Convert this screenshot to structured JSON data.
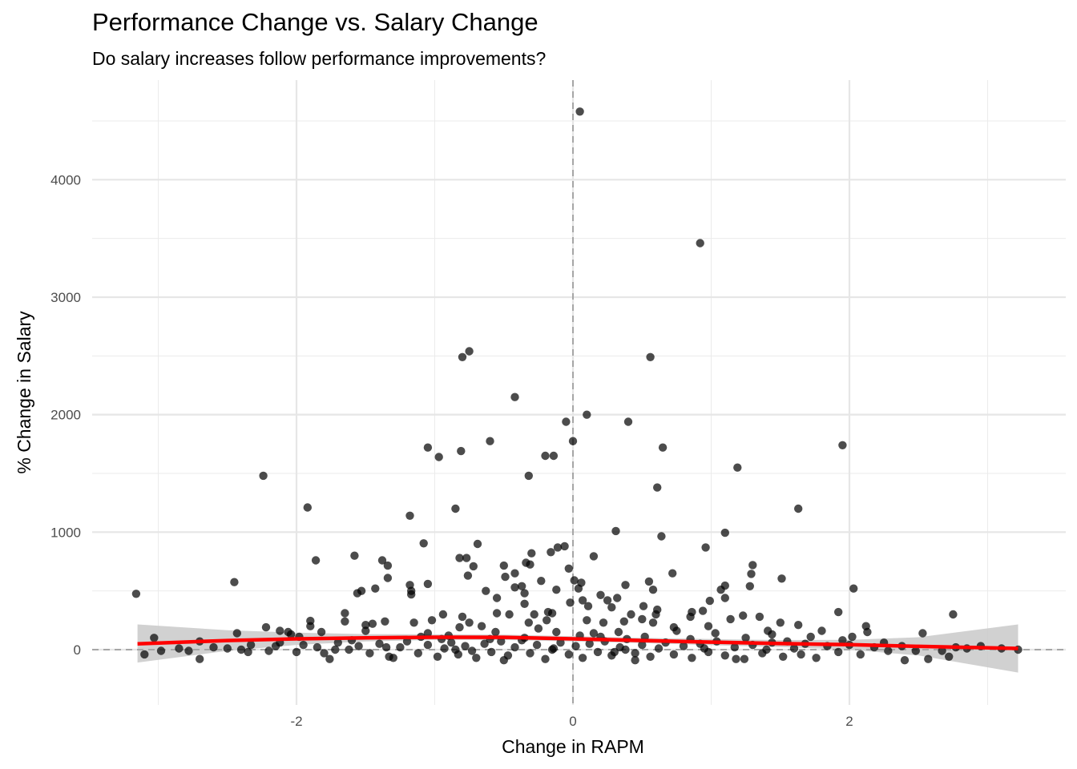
{
  "chart_data": {
    "type": "scatter",
    "title": "Performance Change vs. Salary Change",
    "subtitle": "Do salary increases follow performance improvements?",
    "xlabel": "Change in RAPM",
    "ylabel": "% Change in Salary",
    "xlim": [
      -3.2,
      3.2
    ],
    "ylim": [
      -400,
      4650
    ],
    "x_ticks": [
      -2,
      0,
      2
    ],
    "y_ticks": [
      0,
      1000,
      2000,
      3000,
      4000
    ],
    "grid": true,
    "reference_lines": {
      "vertical_x": 0,
      "horizontal_y": 0,
      "style": "dashed"
    },
    "trend": {
      "method": "smooth",
      "color": "#ff0000",
      "band_color": "#cccccc",
      "points": [
        {
          "x": -3.15,
          "y": 50,
          "lo": -110,
          "hi": 215
        },
        {
          "x": -2.5,
          "y": 78,
          "lo": -10,
          "hi": 165
        },
        {
          "x": -2.0,
          "y": 92,
          "lo": 40,
          "hi": 145
        },
        {
          "x": -1.5,
          "y": 100,
          "lo": 70,
          "hi": 132
        },
        {
          "x": -1.0,
          "y": 106,
          "lo": 82,
          "hi": 130
        },
        {
          "x": -0.5,
          "y": 105,
          "lo": 82,
          "hi": 128
        },
        {
          "x": 0.0,
          "y": 92,
          "lo": 70,
          "hi": 114
        },
        {
          "x": 0.5,
          "y": 78,
          "lo": 56,
          "hi": 100
        },
        {
          "x": 1.0,
          "y": 64,
          "lo": 38,
          "hi": 90
        },
        {
          "x": 1.5,
          "y": 52,
          "lo": 22,
          "hi": 82
        },
        {
          "x": 2.0,
          "y": 42,
          "lo": 0,
          "hi": 84
        },
        {
          "x": 2.5,
          "y": 28,
          "lo": -50,
          "hi": 106
        },
        {
          "x": 3.22,
          "y": 10,
          "lo": -195,
          "hi": 215
        }
      ]
    },
    "points": [
      [
        0.05,
        4580
      ],
      [
        0.92,
        3460
      ],
      [
        -0.8,
        2490
      ],
      [
        -0.75,
        2540
      ],
      [
        0.56,
        2490
      ],
      [
        -0.42,
        2150
      ],
      [
        -0.05,
        1940
      ],
      [
        0.1,
        2000
      ],
      [
        0.4,
        1940
      ],
      [
        0.0,
        1775
      ],
      [
        -0.6,
        1775
      ],
      [
        -1.05,
        1720
      ],
      [
        -0.97,
        1640
      ],
      [
        -0.81,
        1690
      ],
      [
        -0.2,
        1650
      ],
      [
        -0.14,
        1650
      ],
      [
        0.65,
        1720
      ],
      [
        1.95,
        1740
      ],
      [
        1.19,
        1550
      ],
      [
        -2.24,
        1480
      ],
      [
        -0.32,
        1480
      ],
      [
        0.61,
        1380
      ],
      [
        -1.92,
        1210
      ],
      [
        -0.85,
        1200
      ],
      [
        1.63,
        1200
      ],
      [
        -1.18,
        1140
      ],
      [
        0.31,
        1010
      ],
      [
        0.64,
        965
      ],
      [
        1.1,
        995
      ],
      [
        -1.08,
        905
      ],
      [
        -0.69,
        900
      ],
      [
        0.96,
        870
      ],
      [
        -0.06,
        880
      ],
      [
        -0.11,
        870
      ],
      [
        -0.16,
        830
      ],
      [
        -0.3,
        820
      ],
      [
        -1.58,
        800
      ],
      [
        -0.82,
        780
      ],
      [
        -0.77,
        780
      ],
      [
        0.15,
        795
      ],
      [
        -1.86,
        760
      ],
      [
        -1.38,
        760
      ],
      [
        -1.34,
        715
      ],
      [
        -0.34,
        740
      ],
      [
        -0.31,
        725
      ],
      [
        -0.5,
        715
      ],
      [
        -0.72,
        710
      ],
      [
        1.3,
        720
      ],
      [
        0.72,
        650
      ],
      [
        1.29,
        645
      ],
      [
        1.51,
        605
      ],
      [
        -1.34,
        610
      ],
      [
        -0.49,
        620
      ],
      [
        -0.76,
        630
      ],
      [
        -0.42,
        650
      ],
      [
        -0.23,
        585
      ],
      [
        0.01,
        590
      ],
      [
        0.06,
        570
      ],
      [
        0.55,
        580
      ],
      [
        -2.45,
        575
      ],
      [
        -1.05,
        560
      ],
      [
        -0.03,
        690
      ],
      [
        -1.18,
        550
      ],
      [
        0.38,
        550
      ],
      [
        1.1,
        545
      ],
      [
        0.58,
        510
      ],
      [
        -0.42,
        530
      ],
      [
        -0.12,
        510
      ],
      [
        0.04,
        520
      ],
      [
        0.2,
        465
      ],
      [
        -0.37,
        540
      ],
      [
        -1.43,
        520
      ],
      [
        -1.53,
        500
      ],
      [
        -1.56,
        480
      ],
      [
        -1.17,
        470
      ],
      [
        -1.17,
        500
      ],
      [
        -0.63,
        500
      ],
      [
        -0.55,
        440
      ],
      [
        -0.35,
        480
      ],
      [
        2.03,
        520
      ],
      [
        1.07,
        510
      ],
      [
        0.99,
        415
      ],
      [
        1.1,
        440
      ],
      [
        1.28,
        540
      ],
      [
        0.32,
        440
      ],
      [
        0.25,
        420
      ],
      [
        0.07,
        420
      ],
      [
        -0.02,
        400
      ],
      [
        -0.35,
        390
      ],
      [
        -0.18,
        320
      ],
      [
        0.11,
        370
      ],
      [
        0.28,
        360
      ],
      [
        0.51,
        370
      ],
      [
        0.61,
        340
      ],
      [
        0.6,
        300
      ],
      [
        -3.16,
        475
      ],
      [
        -0.94,
        300
      ],
      [
        -0.8,
        280
      ],
      [
        -0.55,
        310
      ],
      [
        -0.46,
        300
      ],
      [
        -0.28,
        300
      ],
      [
        -0.15,
        310
      ],
      [
        0.42,
        300
      ],
      [
        0.86,
        320
      ],
      [
        0.94,
        330
      ],
      [
        1.23,
        290
      ],
      [
        1.35,
        280
      ],
      [
        1.92,
        320
      ],
      [
        2.75,
        300
      ],
      [
        -1.65,
        310
      ],
      [
        -2.22,
        190
      ],
      [
        -2.12,
        160
      ],
      [
        -2.06,
        150
      ],
      [
        -1.9,
        200
      ],
      [
        -1.9,
        245
      ],
      [
        -1.82,
        150
      ],
      [
        -1.65,
        240
      ],
      [
        -1.5,
        210
      ],
      [
        -1.45,
        220
      ],
      [
        -1.36,
        240
      ],
      [
        -1.15,
        230
      ],
      [
        -1.02,
        250
      ],
      [
        -0.82,
        190
      ],
      [
        -0.75,
        230
      ],
      [
        -0.66,
        200
      ],
      [
        -0.32,
        230
      ],
      [
        -0.25,
        180
      ],
      [
        -0.19,
        250
      ],
      [
        0.1,
        250
      ],
      [
        0.22,
        230
      ],
      [
        0.37,
        240
      ],
      [
        0.5,
        260
      ],
      [
        0.58,
        230
      ],
      [
        0.73,
        190
      ],
      [
        0.85,
        280
      ],
      [
        0.98,
        200
      ],
      [
        1.14,
        260
      ],
      [
        1.41,
        160
      ],
      [
        1.5,
        230
      ],
      [
        1.63,
        210
      ],
      [
        1.8,
        160
      ],
      [
        2.12,
        200
      ],
      [
        2.53,
        140
      ],
      [
        -2.43,
        140
      ],
      [
        -2.04,
        130
      ],
      [
        -1.5,
        160
      ],
      [
        -1.05,
        140
      ],
      [
        -0.9,
        120
      ],
      [
        -0.56,
        150
      ],
      [
        -0.12,
        150
      ],
      [
        0.15,
        140
      ],
      [
        0.33,
        150
      ],
      [
        0.75,
        160
      ],
      [
        1.03,
        140
      ],
      [
        1.44,
        130
      ],
      [
        1.72,
        110
      ],
      [
        2.02,
        110
      ],
      [
        2.13,
        150
      ],
      [
        -3.1,
        -40
      ],
      [
        -3.03,
        100
      ],
      [
        -2.98,
        -10
      ],
      [
        -2.85,
        10
      ],
      [
        -2.78,
        -10
      ],
      [
        -2.7,
        -80
      ],
      [
        -2.6,
        20
      ],
      [
        -2.5,
        10
      ],
      [
        -2.4,
        0
      ],
      [
        -2.33,
        40
      ],
      [
        -2.2,
        -10
      ],
      [
        -2.15,
        30
      ],
      [
        -2.0,
        -20
      ],
      [
        -1.95,
        40
      ],
      [
        -1.85,
        20
      ],
      [
        -1.76,
        -80
      ],
      [
        -1.7,
        60
      ],
      [
        -1.62,
        0
      ],
      [
        -1.55,
        30
      ],
      [
        -1.47,
        -30
      ],
      [
        -1.4,
        50
      ],
      [
        -1.33,
        -60
      ],
      [
        -1.25,
        20
      ],
      [
        -1.2,
        70
      ],
      [
        -1.12,
        -30
      ],
      [
        -1.05,
        40
      ],
      [
        -0.98,
        -60
      ],
      [
        -0.93,
        10
      ],
      [
        -0.88,
        60
      ],
      [
        -0.83,
        -40
      ],
      [
        -0.78,
        30
      ],
      [
        -0.7,
        -70
      ],
      [
        -0.64,
        50
      ],
      [
        -0.59,
        -20
      ],
      [
        -0.52,
        70
      ],
      [
        -0.47,
        -50
      ],
      [
        -0.42,
        20
      ],
      [
        -0.37,
        80
      ],
      [
        -0.31,
        -30
      ],
      [
        -0.26,
        40
      ],
      [
        -0.2,
        -80
      ],
      [
        -0.14,
        10
      ],
      [
        -0.09,
        60
      ],
      [
        -0.03,
        -40
      ],
      [
        0.02,
        30
      ],
      [
        0.07,
        -70
      ],
      [
        0.12,
        50
      ],
      [
        0.18,
        -20
      ],
      [
        0.23,
        70
      ],
      [
        0.28,
        -50
      ],
      [
        0.34,
        20
      ],
      [
        0.39,
        90
      ],
      [
        0.45,
        -30
      ],
      [
        0.5,
        40
      ],
      [
        0.56,
        -60
      ],
      [
        0.62,
        10
      ],
      [
        0.67,
        60
      ],
      [
        0.73,
        -40
      ],
      [
        0.8,
        30
      ],
      [
        0.86,
        -70
      ],
      [
        0.92,
        50
      ],
      [
        0.98,
        -20
      ],
      [
        1.04,
        70
      ],
      [
        1.1,
        -50
      ],
      [
        1.17,
        20
      ],
      [
        1.24,
        -80
      ],
      [
        1.3,
        40
      ],
      [
        1.37,
        -30
      ],
      [
        1.44,
        60
      ],
      [
        1.52,
        -60
      ],
      [
        1.6,
        10
      ],
      [
        1.68,
        50
      ],
      [
        1.76,
        -70
      ],
      [
        1.84,
        30
      ],
      [
        1.92,
        -20
      ],
      [
        2.0,
        40
      ],
      [
        2.08,
        -40
      ],
      [
        2.18,
        20
      ],
      [
        2.28,
        -10
      ],
      [
        2.38,
        30
      ],
      [
        2.48,
        -10
      ],
      [
        2.57,
        -80
      ],
      [
        2.67,
        -10
      ],
      [
        2.77,
        20
      ],
      [
        2.85,
        10
      ],
      [
        2.95,
        30
      ],
      [
        3.1,
        10
      ],
      [
        3.22,
        0
      ],
      [
        2.72,
        -60
      ],
      [
        2.4,
        -90
      ],
      [
        1.18,
        -80
      ],
      [
        0.45,
        -90
      ],
      [
        -0.5,
        -90
      ],
      [
        -1.3,
        -70
      ],
      [
        -2.35,
        -20
      ],
      [
        -1.6,
        80
      ],
      [
        -0.95,
        90
      ],
      [
        -0.35,
        100
      ],
      [
        0.2,
        110
      ],
      [
        0.85,
        90
      ],
      [
        1.55,
        70
      ],
      [
        2.25,
        60
      ],
      [
        -2.7,
        70
      ],
      [
        -1.98,
        110
      ],
      [
        -1.1,
        110
      ],
      [
        -0.6,
        90
      ],
      [
        0.05,
        120
      ],
      [
        0.52,
        110
      ],
      [
        1.25,
        100
      ],
      [
        1.95,
        80
      ],
      [
        -1.8,
        -30
      ],
      [
        -0.73,
        -10
      ],
      [
        0.3,
        -20
      ],
      [
        1.65,
        -40
      ],
      [
        -1.35,
        20
      ],
      [
        -0.15,
        0
      ],
      [
        0.95,
        10
      ],
      [
        -2.12,
        60
      ],
      [
        -0.85,
        0
      ],
      [
        0.38,
        0
      ],
      [
        1.4,
        0
      ],
      [
        -1.72,
        0
      ]
    ]
  }
}
